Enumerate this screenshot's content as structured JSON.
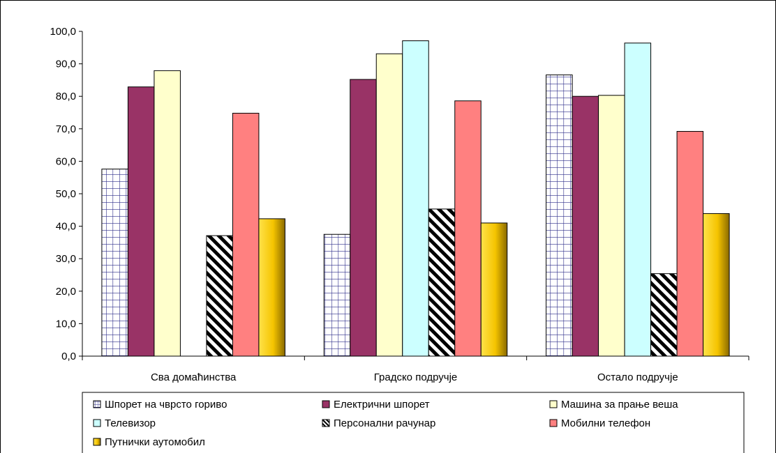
{
  "chart_data": {
    "type": "bar",
    "title": "",
    "xlabel": "",
    "ylabel": "",
    "ylim": [
      0,
      100
    ],
    "yticks": [
      "0,0",
      "10,0",
      "20,0",
      "30,0",
      "40,0",
      "50,0",
      "60,0",
      "70,0",
      "80,0",
      "90,0",
      "100,0"
    ],
    "categories": [
      "Сва домаћинства",
      "Градско подручје",
      "Остало подручје"
    ],
    "grid": false,
    "legend_position": "bottom",
    "series": [
      {
        "name": "Шпорет на чврсто гориво",
        "values": [
          57.6,
          37.5,
          86.6
        ],
        "color": "#ffffff",
        "pattern": "grid",
        "stroke": "#2e2e8a"
      },
      {
        "name": "Електрични шпорет",
        "values": [
          82.9,
          85.2,
          80.0
        ],
        "color": "#993366",
        "pattern": "solid"
      },
      {
        "name": "Машина за прање веша",
        "values": [
          87.9,
          93.1,
          80.3
        ],
        "color": "#ffffcc",
        "pattern": "solid"
      },
      {
        "name": "Телевизор",
        "values": [
          null,
          97.1,
          96.4
        ],
        "color": "#ccffff",
        "pattern": "solid"
      },
      {
        "name": "Персонални рачунар",
        "values": [
          37.1,
          45.3,
          25.4
        ],
        "color": "#ffffff",
        "pattern": "diagonal"
      },
      {
        "name": "Мобилни телефон",
        "values": [
          74.8,
          78.6,
          69.2
        ],
        "color": "#ff8080",
        "pattern": "solid"
      },
      {
        "name": "Путнички аутомобил",
        "values": [
          42.3,
          41.0,
          43.9
        ],
        "color": "#ffcc00",
        "pattern": "gold"
      }
    ]
  }
}
